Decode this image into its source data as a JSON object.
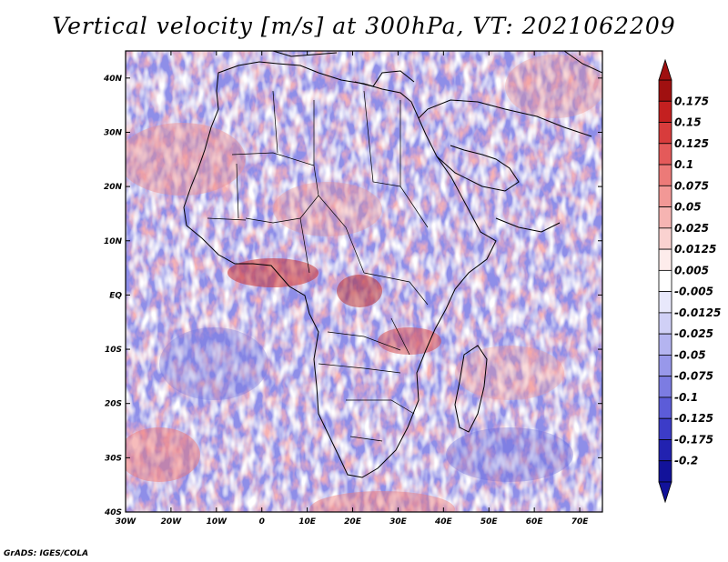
{
  "title": "Vertical velocity [m/s] at 300hPa, VT: 2021062209",
  "credit": "GrADS: IGES/COLA",
  "map": {
    "lon_range": [
      -30,
      75
    ],
    "lat_range": [
      -40,
      45
    ],
    "x_ticks": [
      {
        "lon": -30,
        "label": "30W"
      },
      {
        "lon": -20,
        "label": "20W"
      },
      {
        "lon": -10,
        "label": "10W"
      },
      {
        "lon": 0,
        "label": "0"
      },
      {
        "lon": 10,
        "label": "10E"
      },
      {
        "lon": 20,
        "label": "20E"
      },
      {
        "lon": 30,
        "label": "30E"
      },
      {
        "lon": 40,
        "label": "40E"
      },
      {
        "lon": 50,
        "label": "50E"
      },
      {
        "lon": 60,
        "label": "60E"
      },
      {
        "lon": 70,
        "label": "70E"
      }
    ],
    "y_ticks": [
      {
        "lat": 40,
        "label": "40N"
      },
      {
        "lat": 30,
        "label": "30N"
      },
      {
        "lat": 20,
        "label": "20N"
      },
      {
        "lat": 10,
        "label": "10N"
      },
      {
        "lat": 0,
        "label": "EQ"
      },
      {
        "lat": -10,
        "label": "10S"
      },
      {
        "lat": -20,
        "label": "20S"
      },
      {
        "lat": -30,
        "label": "30S"
      },
      {
        "lat": -40,
        "label": "40S"
      }
    ]
  },
  "colorbar": {
    "levels": [
      "0.175",
      "0.15",
      "0.125",
      "0.1",
      "0.075",
      "0.05",
      "0.025",
      "0.0125",
      "0.005",
      "-0.005",
      "-0.0125",
      "-0.025",
      "-0.05",
      "-0.075",
      "-0.1",
      "-0.125",
      "-0.175",
      "-0.2"
    ],
    "colors": [
      "#a01010",
      "#c42020",
      "#d83c3c",
      "#e45a5a",
      "#ec7a78",
      "#f29896",
      "#f6b4b2",
      "#fad2d0",
      "#fdeceb",
      "#ffffff",
      "#e8e8fb",
      "#d0d0f6",
      "#b4b4f0",
      "#9898ea",
      "#7c7ce2",
      "#5c5cd8",
      "#3c3cc8",
      "#2222b0",
      "#12129a"
    ]
  }
}
